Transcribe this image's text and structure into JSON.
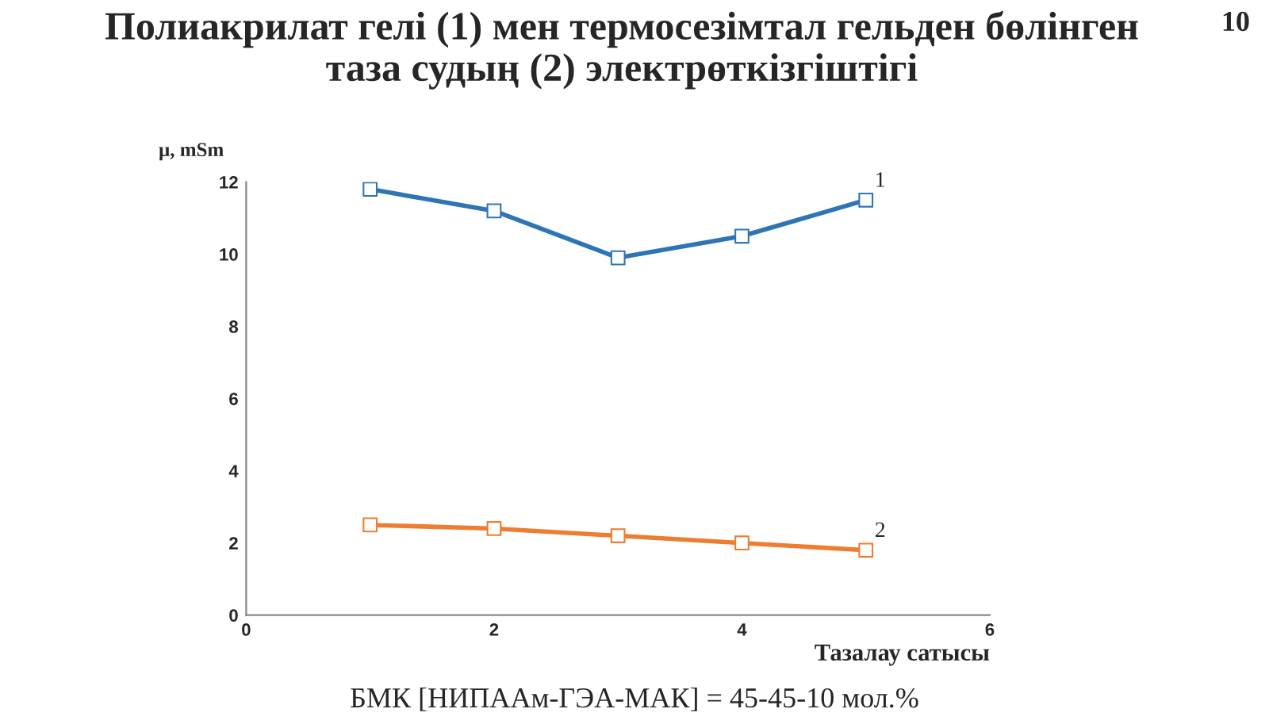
{
  "chart_data": {
    "type": "line",
    "title": "Полиакрилат гелі (1) мен термосезімтал гельден бөлінген\nтаза судың (2) электрөткізгіштігі",
    "xlabel": "Тазалау сатысы",
    "ylabel": "μ, mSm",
    "x": [
      1,
      2,
      3,
      4,
      5
    ],
    "series": [
      {
        "name": "1",
        "color": "#2e75b6",
        "values": [
          11.8,
          11.2,
          9.9,
          10.5,
          11.5
        ]
      },
      {
        "name": "2",
        "color": "#ed7d31",
        "values": [
          2.5,
          2.4,
          2.2,
          2.0,
          1.8
        ]
      }
    ],
    "xlim": [
      0,
      6
    ],
    "xticks": [
      0,
      2,
      4,
      6
    ],
    "ylim": [
      0,
      12
    ],
    "yticks": [
      0,
      2,
      4,
      6,
      8,
      10,
      12
    ],
    "marker": "square",
    "line_style": "solid",
    "grid": false,
    "legend": false,
    "annotations": [
      "БМК [НИПААм-ГЭА-МАК] = 45-45-10 мол.%",
      "10"
    ]
  }
}
